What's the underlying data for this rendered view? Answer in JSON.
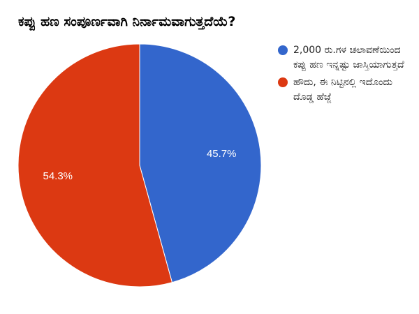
{
  "chart_data": {
    "type": "pie",
    "title": "ಕಪ್ಪು ಹಣ ಸಂಪೂರ್ಣವಾಗಿ ನಿರ್ನಾಮವಾಗುತ್ತದೆಯೆ?",
    "legend_position": "right",
    "slices": [
      {
        "label": "2,000 ರು.ಗಳ ಚಲಾವಣೆಯಿಂದ ಕಪ್ಪು ಹಣ ಇನ್ನಷ್ಟು ಜಾಸ್ತಿಯಾಗುತ್ತದೆ",
        "value": 45.7,
        "value_label": "45.7%",
        "color": "#3366cc"
      },
      {
        "label": "ಹೌದು, ಈ ನಿಟ್ಟಿನಲ್ಲಿ ಇದೊಂದು ದೊಡ್ಡ ಹೆಜ್ಜೆ",
        "value": 54.3,
        "value_label": "54.3%",
        "color": "#dc3912"
      }
    ]
  }
}
